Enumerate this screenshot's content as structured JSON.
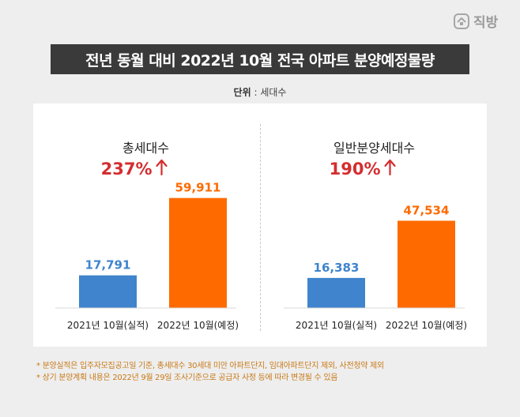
{
  "logo": {
    "text": "직방",
    "icon": "house-logo-icon"
  },
  "title": "전년 동월 대비 2022년 10월 전국 아파트 분양예정물량",
  "unit": {
    "label": "단위",
    "value": ": 세대수"
  },
  "colors": {
    "actual": "#3f84cc",
    "planned": "#fe6a00",
    "accent": "#d42d2f",
    "title_bg": "#3a3a3a"
  },
  "chart_data": [
    {
      "type": "bar",
      "title": "총세대수",
      "change_label": "237%",
      "change_icon": "arrow-up-icon",
      "categories": [
        "2021년 10월(실적)",
        "2022년 10월(예정)"
      ],
      "values": [
        17791,
        59911
      ],
      "value_labels": [
        "17,791",
        "59,911"
      ],
      "ylim": [
        0,
        80000
      ]
    },
    {
      "type": "bar",
      "title": "일반분양세대수",
      "change_label": "190%",
      "change_icon": "arrow-up-icon",
      "categories": [
        "2021년 10월(실적)",
        "2022년 10월(예정)"
      ],
      "values": [
        16383,
        47534
      ],
      "value_labels": [
        "16,383",
        "47,534"
      ],
      "ylim": [
        0,
        80000
      ]
    }
  ],
  "footnotes": [
    "* 분양실적은 입주자모집공고일 기준, 총세대수 30세대 미만 아파트단지, 임대아파트단지 제외, 사전청약 제외",
    "* 상기 분양계획 내용은 2022년 9월 29일 조사기준으로 공급자 사정 등에 따라 변경될 수 있음"
  ]
}
